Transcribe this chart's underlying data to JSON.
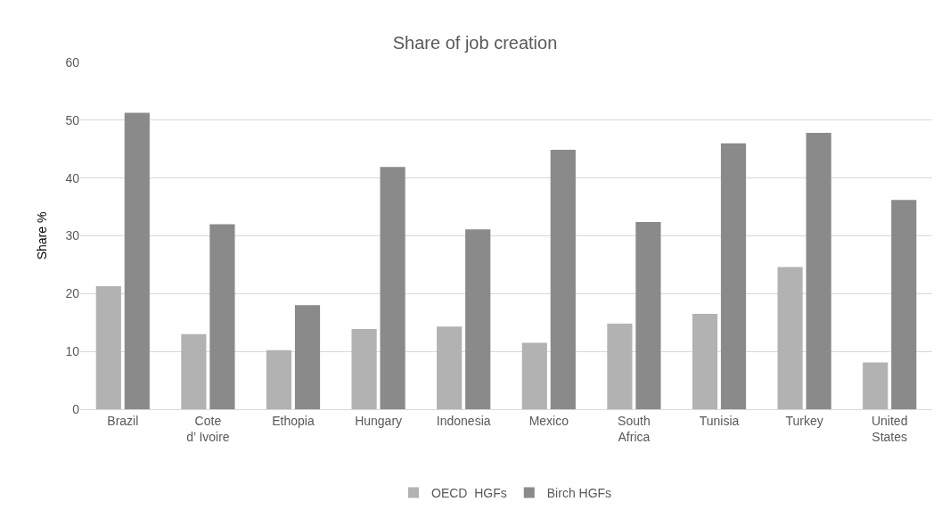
{
  "chart_data": {
    "type": "bar",
    "title": "Share of job creation",
    "ylabel": "Share %",
    "categories": [
      "Brazil",
      "Cote d’ Ivoire",
      "Ethopia",
      "Hungary",
      "Indonesia",
      "Mexico",
      "South Africa",
      "Tunisia",
      "Turkey",
      "United States"
    ],
    "series": [
      {
        "name": "OECD  HGFs",
        "color": "#b2b2b2",
        "values": [
          21.3,
          13.0,
          10.2,
          13.9,
          14.3,
          11.5,
          14.8,
          16.5,
          24.6,
          8.1
        ]
      },
      {
        "name": "Birch HGFs",
        "color": "#8a8a8a",
        "values": [
          51.3,
          32.0,
          18.0,
          41.9,
          31.1,
          44.9,
          32.4,
          46.0,
          47.8,
          36.2
        ]
      }
    ],
    "ylim": [
      0,
      60
    ],
    "yticks": [
      0,
      10,
      20,
      30,
      40,
      50,
      60
    ],
    "grid": "y",
    "legend": "bottom"
  }
}
